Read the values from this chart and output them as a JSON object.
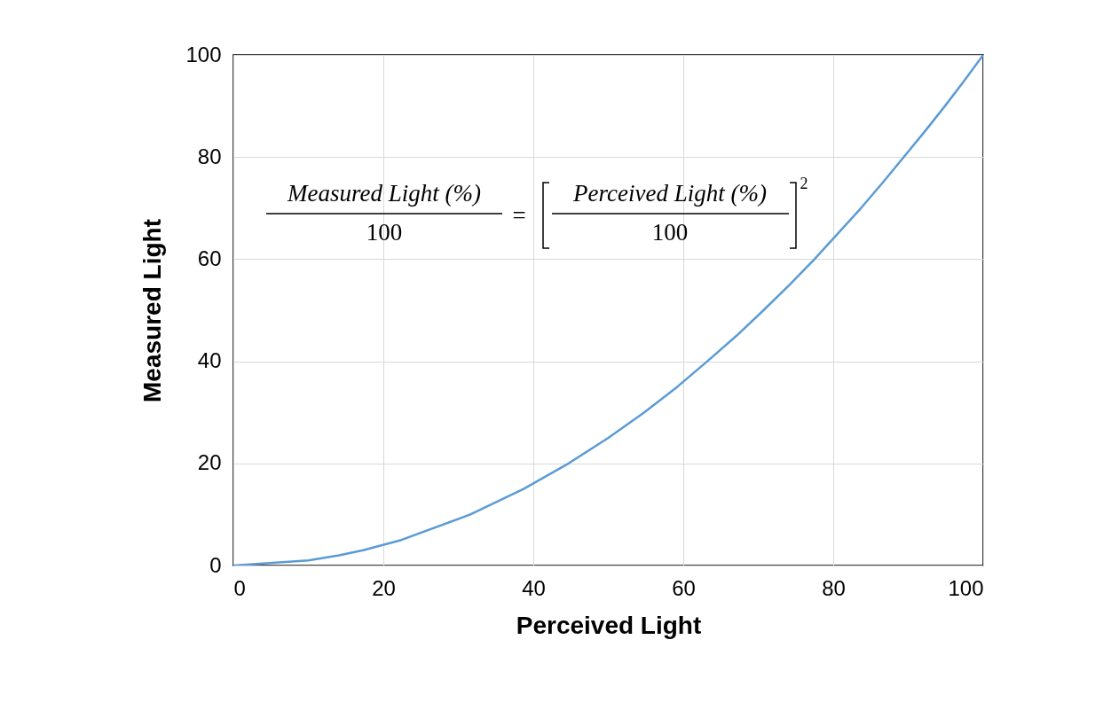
{
  "chart_data": {
    "type": "line",
    "xlabel": "Perceived Light",
    "ylabel": "Measured Light",
    "x": [
      0,
      10,
      14.1,
      17.3,
      22.4,
      31.6,
      38.7,
      44.7,
      50,
      54.8,
      59.2,
      63.2,
      67.1,
      70.7,
      74.2,
      77.5,
      80.6,
      83.7,
      86.6,
      89.4,
      92.2,
      94.9,
      97.5,
      100
    ],
    "series": [
      {
        "color": "#5b9bd5",
        "values": [
          0,
          1,
          2,
          3,
          5,
          10,
          15,
          20,
          25,
          30,
          35,
          40,
          45,
          50,
          55,
          60,
          65,
          70,
          75,
          80,
          85,
          90,
          95,
          100
        ]
      }
    ],
    "xlim": [
      0,
      100
    ],
    "xticks": [
      0,
      20,
      40,
      60,
      80,
      100
    ],
    "ylim": [
      0,
      100
    ],
    "yticks": [
      0,
      20,
      40,
      60,
      80,
      100
    ],
    "grid": true,
    "marker": "none",
    "line_style": "solid",
    "annotations": [
      "Measured Light (%)",
      "100",
      "=",
      "Perceived Light (%)",
      "100",
      "2"
    ]
  }
}
